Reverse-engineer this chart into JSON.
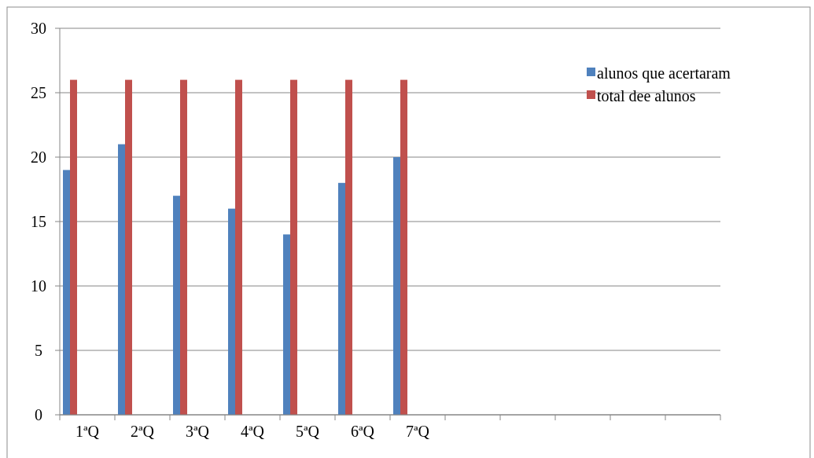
{
  "chart_data": {
    "type": "bar",
    "categories": [
      "1ªQ",
      "2ªQ",
      "3ªQ",
      "4ªQ",
      "5ªQ",
      "6ªQ",
      "7ªQ",
      null,
      null,
      null,
      null,
      null
    ],
    "series": [
      {
        "name": "alunos que acertaram",
        "color": "#4f81bd",
        "values": [
          19,
          21,
          17,
          16,
          14,
          18,
          20,
          null,
          null,
          null,
          null,
          null
        ]
      },
      {
        "name": "total dee alunos",
        "color": "#c0504d",
        "values": [
          26,
          26,
          26,
          26,
          26,
          26,
          26,
          null,
          null,
          null,
          null,
          null
        ]
      }
    ],
    "ylim": [
      0,
      30
    ],
    "yticks": [
      0,
      5,
      10,
      15,
      20,
      25,
      30
    ],
    "grid": "y",
    "legend": "top right"
  }
}
